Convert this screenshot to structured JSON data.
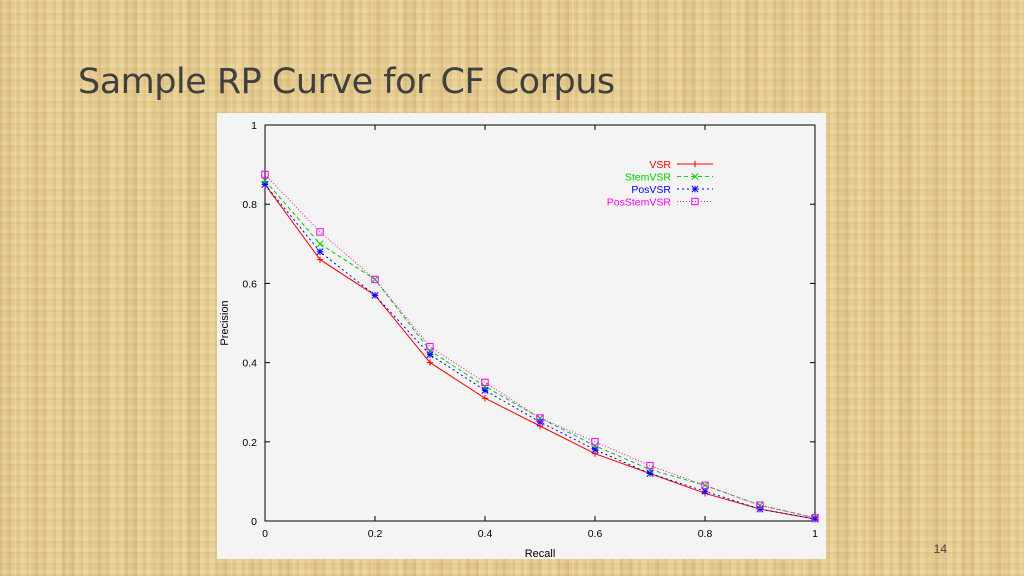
{
  "slide": {
    "title": "Sample RP Curve for CF Corpus",
    "page_number": "14"
  },
  "chart_data": {
    "type": "line",
    "title": "",
    "xlabel": "Recall",
    "ylabel": "Precision",
    "xlim": [
      0,
      1
    ],
    "ylim": [
      0,
      1
    ],
    "x_ticks": [
      "0",
      "0.2",
      "0.4",
      "0.6",
      "0.8",
      "1"
    ],
    "y_ticks": [
      "0",
      "0.2",
      "0.4",
      "0.6",
      "0.8",
      "1"
    ],
    "grid": false,
    "legend_position": "top-right",
    "x": [
      0,
      0.1,
      0.2,
      0.3,
      0.4,
      0.5,
      0.6,
      0.7,
      0.8,
      0.9,
      1.0
    ],
    "series": [
      {
        "name": "VSR",
        "color": "#ff0000",
        "marker": "plus",
        "dash": "",
        "values": [
          0.85,
          0.66,
          0.57,
          0.4,
          0.31,
          0.24,
          0.17,
          0.12,
          0.07,
          0.03,
          0.005
        ]
      },
      {
        "name": "StemVSR",
        "color": "#00cc00",
        "marker": "cross",
        "dash": "4 3",
        "values": [
          0.86,
          0.7,
          0.61,
          0.43,
          0.34,
          0.26,
          0.19,
          0.13,
          0.09,
          0.04,
          0.008
        ]
      },
      {
        "name": "PosVSR",
        "color": "#0000ff",
        "marker": "star",
        "dash": "2 3",
        "values": [
          0.85,
          0.68,
          0.57,
          0.42,
          0.33,
          0.25,
          0.18,
          0.12,
          0.075,
          0.03,
          0.005
        ]
      },
      {
        "name": "PosStemVSR",
        "color": "#ff00ff",
        "marker": "square",
        "dash": "1 2",
        "values": [
          0.875,
          0.73,
          0.61,
          0.44,
          0.35,
          0.26,
          0.2,
          0.14,
          0.09,
          0.04,
          0.008
        ]
      }
    ]
  }
}
